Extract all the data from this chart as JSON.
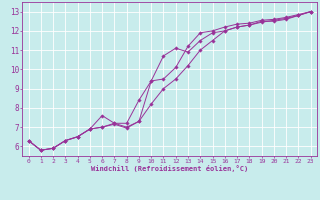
{
  "xlabel": "Windchill (Refroidissement éolien,°C)",
  "bg_color": "#c8ecec",
  "line_color": "#993399",
  "grid_color": "#aadddd",
  "xlim": [
    -0.5,
    23.5
  ],
  "ylim": [
    5.5,
    13.5
  ],
  "xticks": [
    0,
    1,
    2,
    3,
    4,
    5,
    6,
    7,
    8,
    9,
    10,
    11,
    12,
    13,
    14,
    15,
    16,
    17,
    18,
    19,
    20,
    21,
    22,
    23
  ],
  "yticks": [
    6,
    7,
    8,
    9,
    10,
    11,
    12,
    13
  ],
  "line1_x": [
    0,
    1,
    2,
    3,
    4,
    5,
    6,
    7,
    8,
    9,
    10,
    11,
    12,
    13,
    14,
    15,
    16,
    17,
    18,
    19,
    20,
    21,
    22,
    23
  ],
  "line1_y": [
    6.3,
    5.8,
    5.9,
    6.3,
    6.5,
    6.9,
    7.0,
    7.2,
    7.0,
    7.3,
    9.4,
    10.7,
    11.1,
    10.9,
    11.5,
    11.9,
    12.0,
    12.2,
    12.3,
    12.5,
    12.5,
    12.6,
    12.8,
    13.0
  ],
  "line2_x": [
    0,
    1,
    2,
    3,
    4,
    5,
    6,
    7,
    8,
    9,
    10,
    11,
    12,
    13,
    14,
    15,
    16,
    17,
    18,
    19,
    20,
    21,
    22,
    23
  ],
  "line2_y": [
    6.3,
    5.8,
    5.9,
    6.3,
    6.5,
    6.9,
    7.6,
    7.2,
    7.2,
    8.4,
    9.4,
    9.5,
    10.1,
    11.2,
    11.9,
    12.0,
    12.2,
    12.35,
    12.4,
    12.55,
    12.6,
    12.7,
    12.85,
    13.0
  ],
  "line3_x": [
    0,
    1,
    2,
    3,
    4,
    5,
    6,
    7,
    8,
    9,
    10,
    11,
    12,
    13,
    14,
    15,
    16,
    17,
    18,
    19,
    20,
    21,
    22,
    23
  ],
  "line3_y": [
    6.3,
    5.8,
    5.9,
    6.3,
    6.5,
    6.9,
    7.0,
    7.15,
    6.95,
    7.3,
    8.2,
    9.0,
    9.5,
    10.2,
    11.0,
    11.5,
    12.0,
    12.2,
    12.3,
    12.45,
    12.55,
    12.65,
    12.8,
    13.0
  ]
}
